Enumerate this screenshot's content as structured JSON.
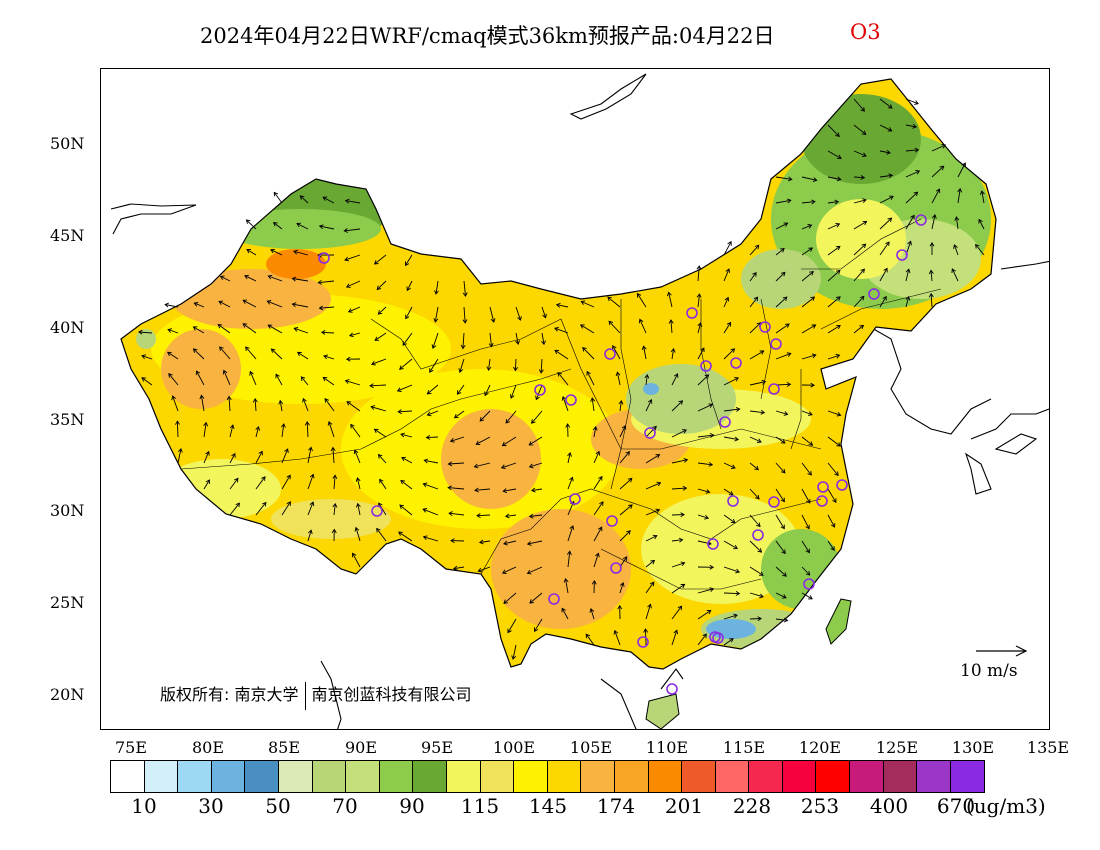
{
  "title": {
    "main": "2024年04月22日WRF/cmaq模式36km预报产品:04月22日",
    "species": "O3",
    "species_color": "#e00000"
  },
  "axes": {
    "lat_labels": [
      "50N",
      "45N",
      "40N",
      "35N",
      "30N",
      "25N",
      "20N"
    ],
    "lon_labels": [
      "75E",
      "80E",
      "85E",
      "90E",
      "95E",
      "100E",
      "105E",
      "110E",
      "115E",
      "120E",
      "125E",
      "130E",
      "135E"
    ]
  },
  "copyright": {
    "label": "版权所有:",
    "org1": "南京大学",
    "org2": "南京创蓝科技有限公司"
  },
  "wind_reference": {
    "label": "10 m/s"
  },
  "colorbar": {
    "colors": [
      "#ffffff",
      "#d3effa",
      "#9dd9f4",
      "#6cb3e0",
      "#4a8fc2",
      "#dcebb6",
      "#b8d678",
      "#c3e07a",
      "#8ccb4c",
      "#6aa834",
      "#f2f55c",
      "#f0e25a",
      "#fef200",
      "#fcd700",
      "#f8b341",
      "#f8a524",
      "#fb8a00",
      "#ef5a2a",
      "#fd6766",
      "#f5284f",
      "#f5003c",
      "#fe0000",
      "#c81a7a",
      "#a32c5c",
      "#9a37c8",
      "#8a2be2"
    ],
    "tick_labels": [
      "10",
      "30",
      "50",
      "70",
      "90",
      "115",
      "145",
      "174",
      "201",
      "228",
      "253",
      "400",
      "670"
    ],
    "unit": "(ug/m3)"
  }
}
